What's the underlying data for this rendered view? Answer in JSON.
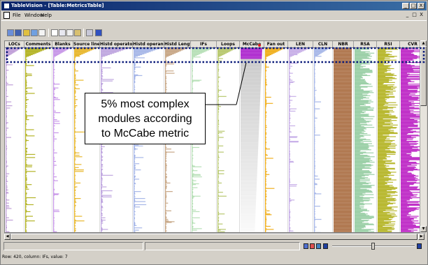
{
  "window": {
    "title": "TableVision - [Table:MetricsTable]",
    "controls": [
      "_",
      "□",
      "X"
    ],
    "mdi_controls": [
      "_",
      "□",
      "X"
    ]
  },
  "menu": {
    "items": [
      "File",
      "Window",
      "Help"
    ]
  },
  "toolbar": {
    "icons": [
      "new-icon",
      "save-icon",
      "open-icon",
      "properties-icon",
      "table-icon",
      "document-icon",
      "cut-icon",
      "copy-icon",
      "paste-icon",
      "print-icon",
      "info-icon"
    ]
  },
  "table": {
    "columns": [
      "LOCs",
      "Comments",
      "Blanks",
      "Source lines",
      "Histd operators",
      "Histd operands",
      "Histd Length",
      "IFs",
      "Loops",
      "McCabe",
      "Fan out",
      "LEN",
      "CLN",
      "NBR",
      "RSA",
      "RSI",
      "CVR"
    ],
    "sorted_column": "McCabe",
    "column_colors": [
      "#c0a0d8",
      "#b4b428",
      "#c898e8",
      "#e8b830",
      "#c0a8e0",
      "#a8b8e8",
      "#c8a888",
      "#b8e0b8",
      "#b8c870",
      "#b030d0",
      "#f0b020",
      "#c8b0e8",
      "#a8b8e8",
      "#b07850",
      "#9cd0a8",
      "#b8b830",
      "#c030c8"
    ]
  },
  "annotation": {
    "lines": [
      "5% most complex",
      "modules according",
      "to McCabe metric"
    ]
  },
  "status": {
    "text": "Row: 420, column: IFs, value: 7"
  }
}
